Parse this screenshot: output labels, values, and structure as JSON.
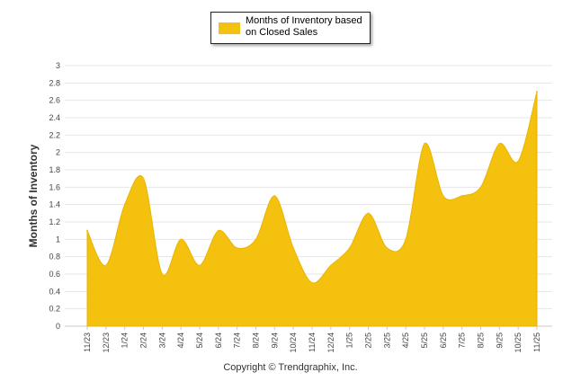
{
  "chart_data": {
    "type": "area",
    "title": "",
    "xlabel": "",
    "ylabel": "Months of Inventory",
    "ylim": [
      0,
      3
    ],
    "yticks": [
      "0",
      "0.2",
      "0.4",
      "0.6",
      "0.8",
      "1",
      "1.2",
      "1.4",
      "1.6",
      "1.8",
      "2",
      "2.2",
      "2.4",
      "2.6",
      "2.8",
      "3"
    ],
    "grid": true,
    "legend_position": "top-center",
    "categories": [
      "11/23",
      "12/23",
      "1/24",
      "2/24",
      "3/24",
      "4/24",
      "5/24",
      "6/24",
      "7/24",
      "8/24",
      "9/24",
      "10/24",
      "11/24",
      "12/24",
      "1/25",
      "2/25",
      "3/25",
      "4/25",
      "5/25",
      "6/25",
      "7/25",
      "8/25",
      "9/25",
      "10/25",
      "11/25"
    ],
    "series": [
      {
        "name": "Months of Inventory based on Closed Sales",
        "color": "#f5c10f",
        "values": [
          1.1,
          0.7,
          1.4,
          1.7,
          0.6,
          1.0,
          0.7,
          1.1,
          0.9,
          1.0,
          1.5,
          0.9,
          0.5,
          0.7,
          0.9,
          1.3,
          0.9,
          1.0,
          2.1,
          1.5,
          1.5,
          1.6,
          2.1,
          1.9,
          2.7
        ]
      }
    ]
  },
  "legend": {
    "line1": "Months of Inventory based",
    "line2": "on Closed Sales"
  },
  "footer": {
    "copyright": "Copyright © Trendgraphix, Inc."
  }
}
